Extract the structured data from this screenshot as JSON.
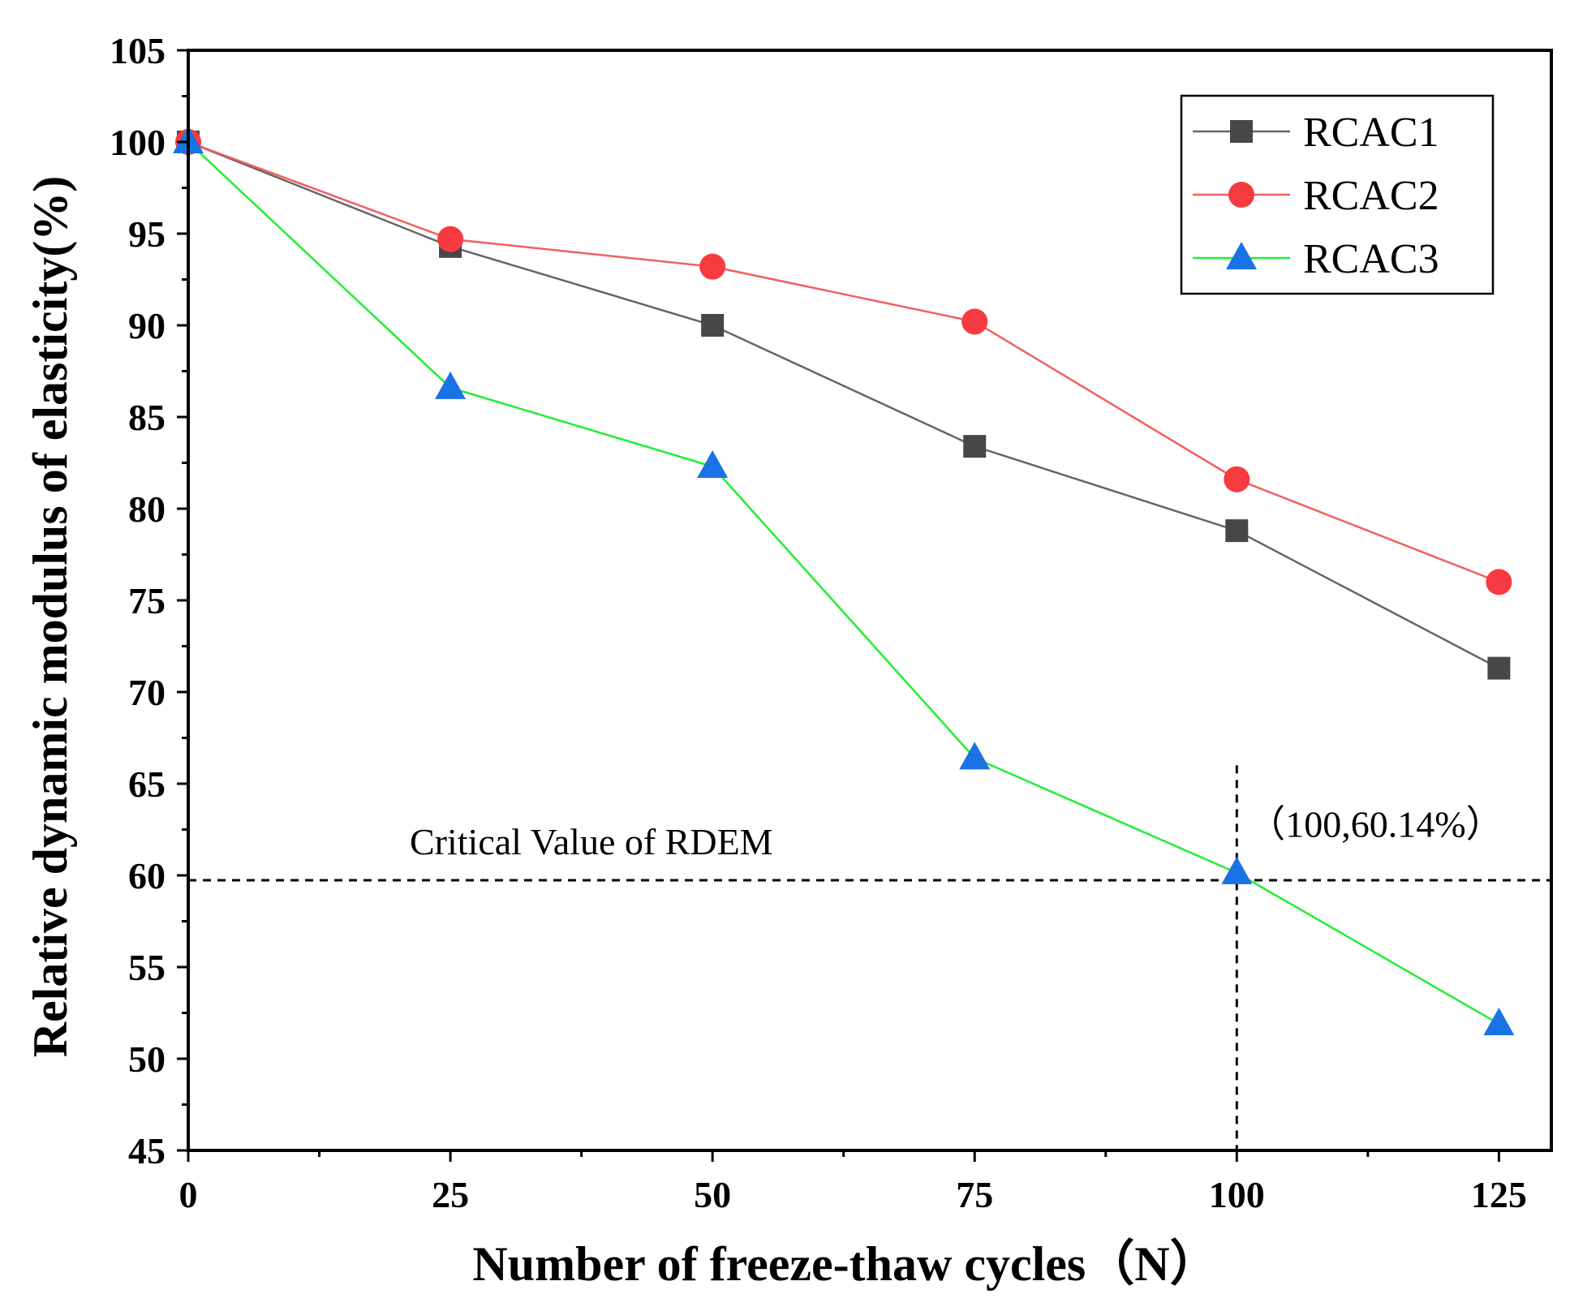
{
  "chart_data": {
    "type": "line",
    "title": "",
    "xlabel": "Number of freeze-thaw cycles（N）",
    "ylabel": "Relative dynamic modulus of elasticity(%)",
    "xlim": [
      0,
      130
    ],
    "ylim": [
      45,
      105
    ],
    "xticks": [
      0,
      25,
      50,
      75,
      100,
      125
    ],
    "yticks": [
      45,
      50,
      55,
      60,
      65,
      70,
      75,
      80,
      85,
      90,
      95,
      100,
      105
    ],
    "x": [
      0,
      25,
      50,
      75,
      100,
      125
    ],
    "series": [
      {
        "name": "RCAC1",
        "marker": "square",
        "line_color": "#666666",
        "marker_color": "#474747",
        "values": [
          100,
          94.3,
          90.0,
          83.4,
          78.8,
          71.3
        ]
      },
      {
        "name": "RCAC2",
        "marker": "circle",
        "line_color": "#f06060",
        "marker_color": "#f53b40",
        "values": [
          100,
          94.7,
          93.2,
          90.2,
          81.6,
          76.0
        ]
      },
      {
        "name": "RCAC3",
        "marker": "triangle",
        "line_color": "#22ee33",
        "marker_color": "#1b72e4",
        "values": [
          100,
          86.6,
          82.3,
          66.4,
          60.14,
          51.9
        ]
      }
    ],
    "legend_position": "top-right",
    "reference_lines": {
      "horizontal": {
        "y": 60,
        "label": "Critical Value of RDEM"
      },
      "vertical": {
        "x": 100
      }
    },
    "annotations": [
      {
        "text": "（100,60.14%）",
        "x": 100,
        "y": 60.14
      }
    ]
  }
}
